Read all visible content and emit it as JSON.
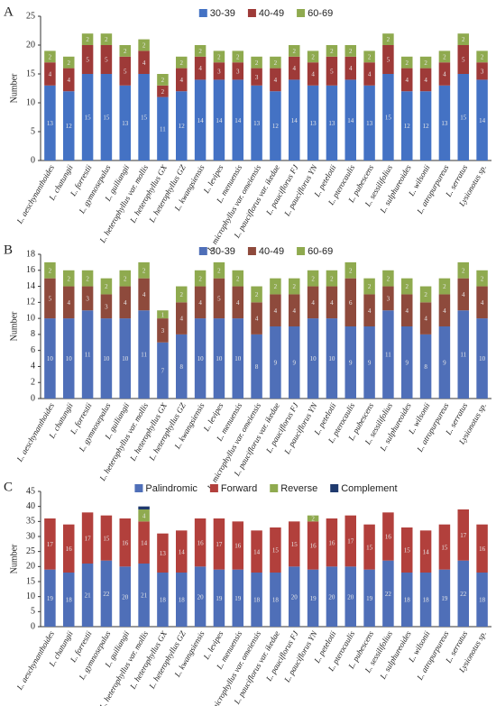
{
  "chart_data": [
    {
      "type": "bar",
      "stacked": true,
      "panel_label": "A",
      "ylabel": "Number",
      "categories": [
        "L. aeschynanthoides",
        "L. chatungii",
        "L. forrestii",
        "L. gymnosepalus",
        "L. guiliangii",
        "L. heterophyllus var. mollis",
        "L. heterophyllus GX",
        "L. heterophyllus GZ",
        "L. kwangsiensis",
        "L. levipes",
        "L. menuensis",
        "L. microphyllus var. omeiensis",
        "L. pauciflorus var. ikedae",
        "L. pauciflorus FJ",
        "L. pauciflorus YN",
        "L. petelotii",
        "L. pterocaulis",
        "L. pubescens",
        "L. sessilifolius",
        "L. sulphureoides",
        "L. wilsonii",
        "L. atropurpureus",
        "L. serratus",
        "Lysionotus sp."
      ],
      "series": [
        {
          "name": "30-39",
          "color": "#4472c4",
          "values": [
            13,
            12,
            15,
            15,
            13,
            15,
            11,
            12,
            14,
            14,
            14,
            13,
            12,
            14,
            13,
            13,
            14,
            13,
            15,
            12,
            12,
            13,
            15,
            14
          ]
        },
        {
          "name": "40-49",
          "color": "#9e3a38",
          "values": [
            4,
            4,
            5,
            5,
            5,
            4,
            2,
            4,
            4,
            3,
            3,
            3,
            4,
            4,
            4,
            5,
            4,
            4,
            5,
            4,
            4,
            4,
            5,
            3
          ]
        },
        {
          "name": "60-69",
          "color": "#8faa4f",
          "values": [
            2,
            2,
            2,
            2,
            2,
            2,
            2,
            2,
            2,
            2,
            2,
            2,
            2,
            2,
            2,
            2,
            2,
            2,
            2,
            2,
            2,
            2,
            2,
            2
          ]
        }
      ],
      "ylim": [
        0,
        25
      ],
      "yticks": [
        0,
        5,
        10,
        15,
        20,
        25
      ],
      "legend": "top"
    },
    {
      "type": "bar",
      "stacked": true,
      "panel_label": "B",
      "ylabel": "Number",
      "categories": [
        "L. aeschynanthoides",
        "L. chatungii",
        "L. forrestii",
        "L. gymnosepalus",
        "L. guiliangii",
        "L. heterophyllus var. mollis",
        "L. heterophyllus GX",
        "L. heterophyllus GZ",
        "L. kwangsiensis",
        "L. levipes",
        "L. menuensis",
        "L. microphyllus var. omeiensis",
        "L. pauciflorus var. ikedae",
        "L. pauciflorus FJ",
        "L. pauciflorus YN",
        "L. petelotii",
        "L. pterocaulis",
        "L. pubescens",
        "L. sessilifolius",
        "L. sulphureoides",
        "L. wilsonii",
        "L. atropurpureus",
        "L. serratus",
        "Lysionotus sp."
      ],
      "series": [
        {
          "name": "30-39",
          "color": "#4f6fb8",
          "values": [
            10,
            10,
            11,
            10,
            10,
            11,
            7,
            8,
            10,
            10,
            10,
            8,
            9,
            9,
            10,
            10,
            9,
            9,
            11,
            9,
            8,
            9,
            11,
            10
          ]
        },
        {
          "name": "40-49",
          "color": "#8e4a3c",
          "values": [
            5,
            4,
            3,
            3,
            4,
            4,
            3,
            4,
            4,
            5,
            4,
            4,
            4,
            4,
            4,
            4,
            6,
            4,
            3,
            4,
            4,
            4,
            4,
            4
          ]
        },
        {
          "name": "60-69",
          "color": "#8faa4f",
          "values": [
            2,
            2,
            2,
            2,
            2,
            2,
            1,
            2,
            2,
            2,
            2,
            2,
            2,
            2,
            2,
            2,
            2,
            2,
            2,
            2,
            2,
            2,
            2,
            2
          ]
        }
      ],
      "ylim": [
        0,
        18
      ],
      "yticks": [
        0,
        2,
        4,
        6,
        8,
        10,
        12,
        14,
        16,
        18
      ],
      "legend": "top"
    },
    {
      "type": "bar",
      "stacked": true,
      "panel_label": "C",
      "ylabel": "Number",
      "categories": [
        "L. aeschynanthoides",
        "L. chatungii",
        "L. forrestii",
        "L. gymnosepalus",
        "L. guiliangii",
        "L. heterophyllus var. mollis",
        "L. heterophyllus GX",
        "L. heterophyllus GZ",
        "L. kwangsiensis",
        "L. levipes",
        "L. menuensis",
        "L. microphyllus var. omeiensis",
        "L. pauciflorus var. ikedae",
        "L. pauciflorus FJ",
        "L. pauciflorus YN",
        "L. petelotii",
        "L. pterocaulis",
        "L. pubescens",
        "L. sessilifolius",
        "L. sulphureoides",
        "L. wilsonii",
        "L. atropurpureus",
        "L. serratus",
        "Lysionotus sp."
      ],
      "series": [
        {
          "name": "Palindromic",
          "color": "#4f6fb8",
          "values": [
            19,
            18,
            21,
            22,
            20,
            21,
            18,
            18,
            20,
            19,
            19,
            18,
            18,
            20,
            19,
            20,
            20,
            19,
            22,
            18,
            18,
            19,
            22,
            18
          ]
        },
        {
          "name": "Forward",
          "color": "#b2403c",
          "values": [
            17,
            16,
            17,
            15,
            16,
            14,
            13,
            14,
            16,
            17,
            16,
            14,
            15,
            15,
            16,
            16,
            17,
            15,
            16,
            15,
            14,
            15,
            17,
            16
          ]
        },
        {
          "name": "Reverse",
          "color": "#8faa4f",
          "values": [
            0,
            0,
            0,
            0,
            0,
            4,
            0,
            0,
            0,
            0,
            0,
            0,
            0,
            0,
            2,
            0,
            0,
            0,
            0,
            0,
            0,
            0,
            0,
            0
          ]
        },
        {
          "name": "Complement",
          "color": "#1f3a6e",
          "values": [
            0,
            0,
            0,
            0,
            0,
            1,
            0,
            0,
            0,
            0,
            0,
            0,
            0,
            0,
            0,
            0,
            0,
            0,
            0,
            0,
            0,
            0,
            0,
            0
          ]
        }
      ],
      "ylim": [
        0,
        45
      ],
      "yticks": [
        0,
        5,
        10,
        15,
        20,
        25,
        30,
        35,
        40,
        45
      ],
      "legend": "top"
    }
  ]
}
